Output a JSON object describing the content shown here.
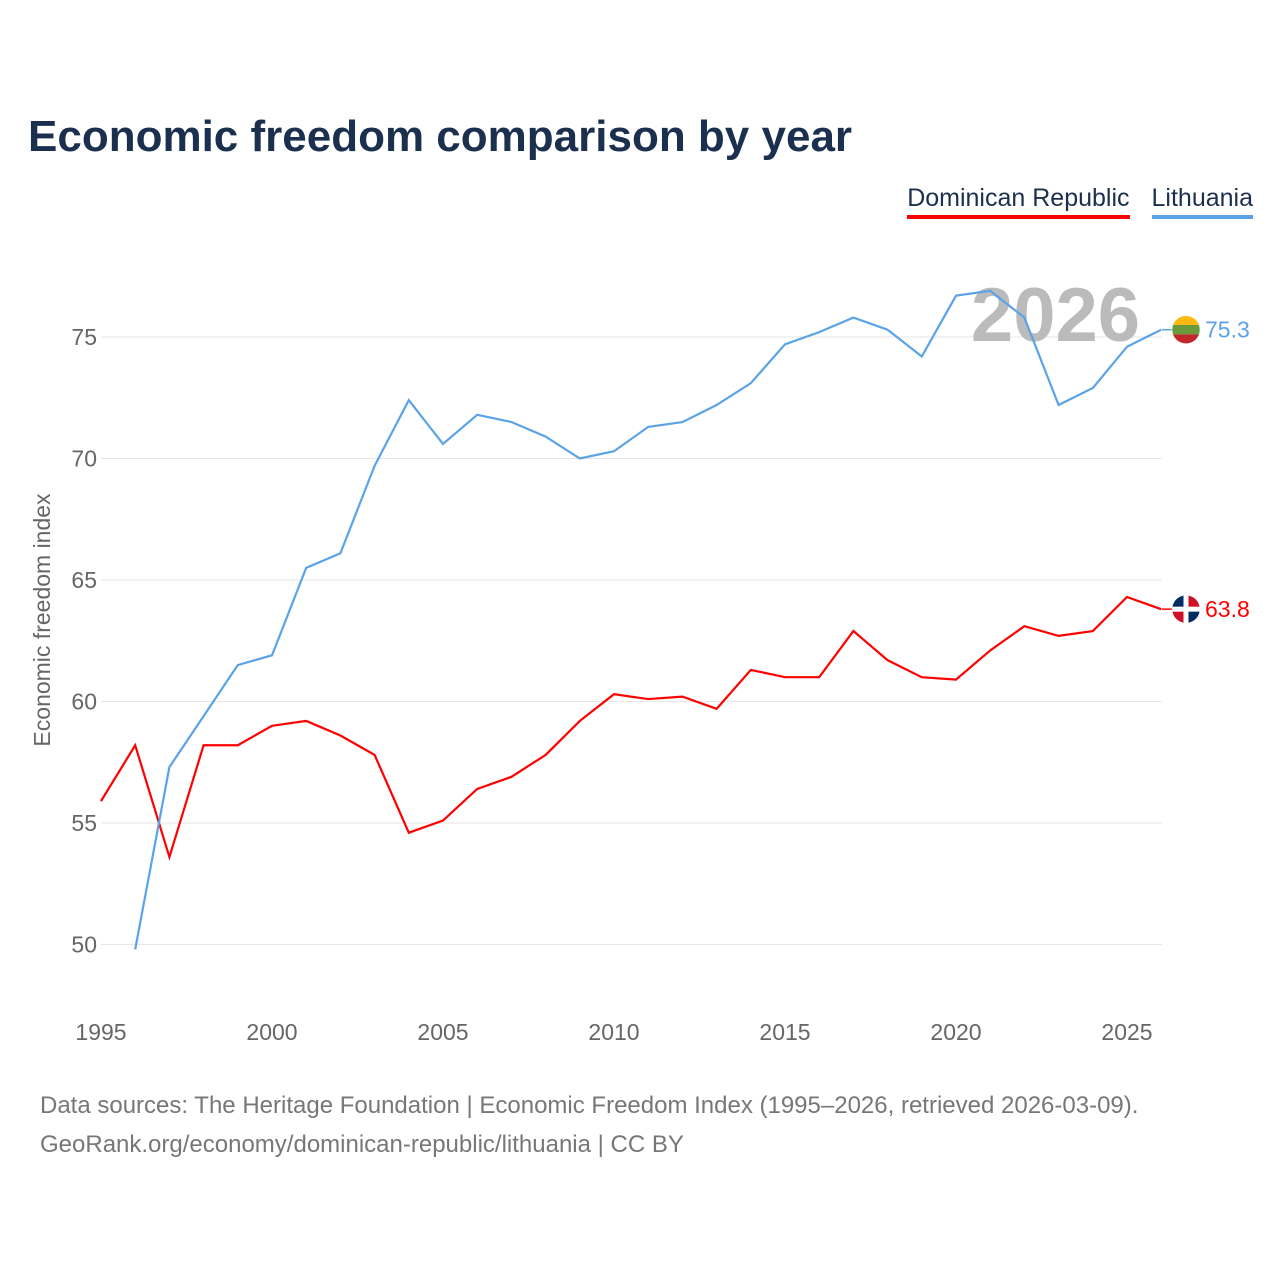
{
  "title": "Economic freedom comparison by year",
  "chart_data": {
    "type": "line",
    "title": "Economic freedom comparison by year",
    "ylabel": "Economic freedom index",
    "xlabel": "",
    "xlim": [
      1995,
      2026
    ],
    "ylim": [
      47.5,
      78.5
    ],
    "xticks": [
      1995,
      2000,
      2005,
      2010,
      2015,
      2020,
      2025
    ],
    "yticks": [
      50,
      55,
      60,
      65,
      70,
      75
    ],
    "grid": true,
    "legend_position": "top-right",
    "year_watermark": "2026",
    "series": [
      {
        "name": "Dominican Republic",
        "color": "#ff0000",
        "end_label": "63.8",
        "x": [
          1995,
          1996,
          1997,
          1998,
          1999,
          2000,
          2001,
          2002,
          2003,
          2004,
          2005,
          2006,
          2007,
          2008,
          2009,
          2010,
          2011,
          2012,
          2013,
          2014,
          2015,
          2016,
          2017,
          2018,
          2019,
          2020,
          2021,
          2022,
          2023,
          2024,
          2025,
          2026
        ],
        "y": [
          55.9,
          58.2,
          53.6,
          58.2,
          58.2,
          59.0,
          59.2,
          58.6,
          57.8,
          54.6,
          55.1,
          56.4,
          56.9,
          57.8,
          59.2,
          60.3,
          60.1,
          60.2,
          59.7,
          61.3,
          61.0,
          61.0,
          62.9,
          61.7,
          61.0,
          60.9,
          62.1,
          63.1,
          62.7,
          62.9,
          64.3,
          63.8
        ]
      },
      {
        "name": "Lithuania",
        "color": "#5ba3e8",
        "end_label": "75.3",
        "x": [
          1996,
          1997,
          1998,
          1999,
          2000,
          2001,
          2002,
          2003,
          2004,
          2005,
          2006,
          2007,
          2008,
          2009,
          2010,
          2011,
          2012,
          2013,
          2014,
          2015,
          2016,
          2017,
          2018,
          2019,
          2020,
          2021,
          2022,
          2023,
          2024,
          2025,
          2026
        ],
        "y": [
          49.8,
          57.3,
          59.4,
          61.5,
          61.9,
          65.5,
          66.1,
          69.7,
          72.4,
          70.6,
          71.8,
          71.5,
          70.9,
          70.0,
          70.3,
          71.3,
          71.5,
          72.2,
          73.1,
          74.7,
          75.2,
          75.8,
          75.3,
          74.2,
          76.7,
          76.9,
          75.8,
          72.2,
          72.9,
          74.6,
          75.3
        ]
      }
    ]
  },
  "footer": {
    "line1": "Data sources: The Heritage Foundation | Economic Freedom Index (1995–2026, retrieved 2026-03-09).",
    "line2": "GeoRank.org/economy/dominican-republic/lithuania | CC BY"
  }
}
